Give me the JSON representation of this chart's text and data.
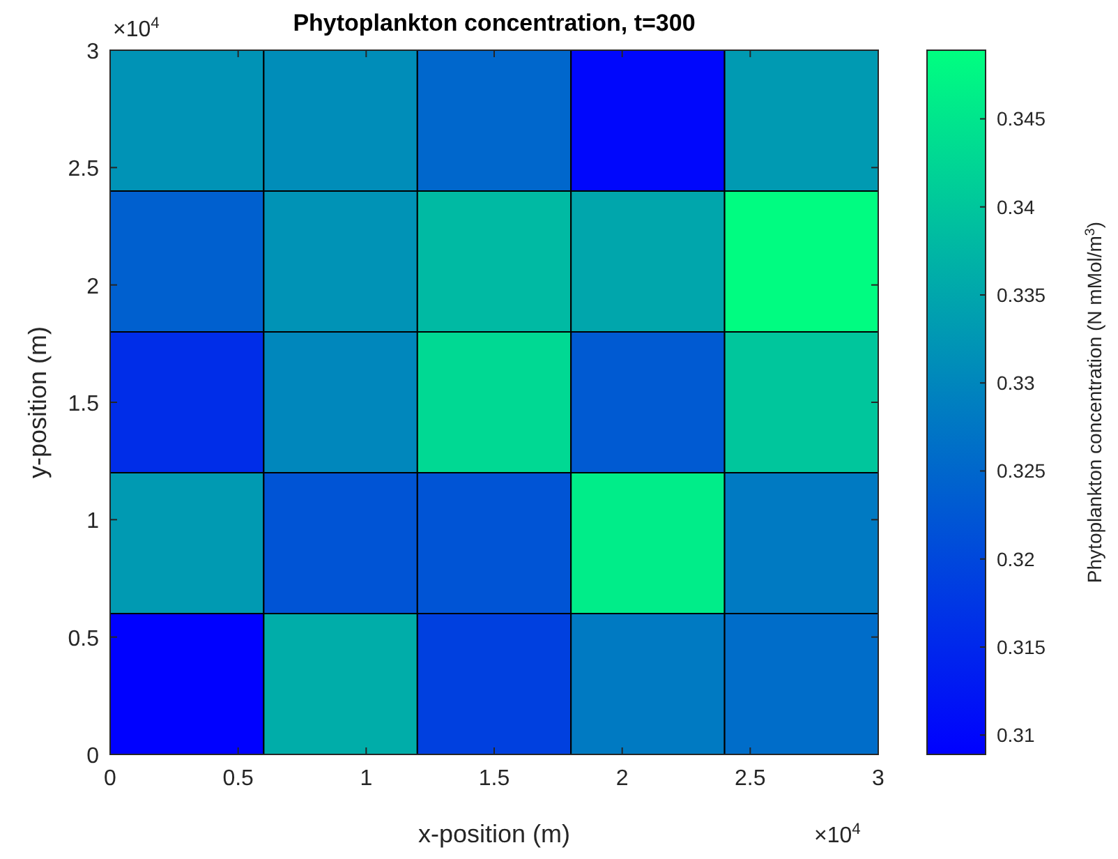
{
  "chart_data": {
    "type": "heatmap",
    "title": "Phytoplankton concentration, t=300",
    "xlabel": "x-position (m)",
    "ylabel": "y-position (m)",
    "clabel": "Phytoplankton concentration (N mMol/m$^{3}$)",
    "xlim": [
      0,
      3
    ],
    "ylim": [
      0,
      3
    ],
    "xticks": [
      0,
      0.5,
      1,
      1.5,
      2,
      2.5,
      3
    ],
    "yticks": [
      0,
      0.5,
      1,
      1.5,
      2,
      2.5,
      3
    ],
    "cells": [
      [
        0.332,
        0.331,
        0.325,
        0.31,
        0.333
      ],
      [
        0.324,
        0.332,
        0.338,
        0.335,
        0.3485
      ],
      [
        0.316,
        0.33,
        0.343,
        0.323,
        0.34
      ],
      [
        0.333,
        0.322,
        0.322,
        0.346,
        0.328
      ],
      [
        0.309,
        0.336,
        0.319,
        0.328,
        0.326
      ]
    ],
    "clim": [
      0.3089,
      0.3489
    ],
    "cticks": [
      0.31,
      0.315,
      0.32,
      0.325,
      0.33,
      0.335,
      0.34,
      0.345
    ],
    "annotations": [
      "×10$^{4}$",
      "×10$^{4}$"
    ]
  }
}
